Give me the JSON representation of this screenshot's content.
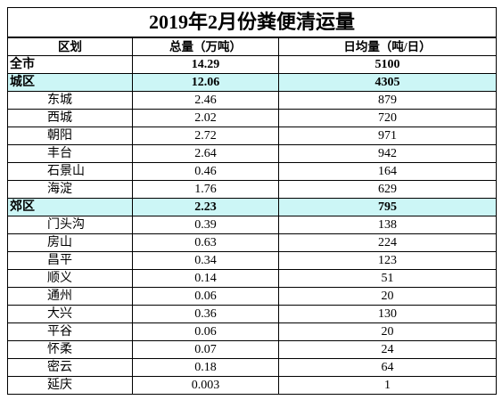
{
  "title": "2019年2月份粪便清运量",
  "headers": {
    "district": "区划",
    "total": "总量（万吨）",
    "daily": "日均量（吨/日）"
  },
  "citywide": {
    "name": "全市",
    "total": "14.29",
    "daily": "5100"
  },
  "urban": {
    "name": "城区",
    "total": "12.06",
    "daily": "4305",
    "rows": [
      {
        "name": "东城",
        "total": "2.46",
        "daily": "879"
      },
      {
        "name": "西城",
        "total": "2.02",
        "daily": "720"
      },
      {
        "name": "朝阳",
        "total": "2.72",
        "daily": "971"
      },
      {
        "name": "丰台",
        "total": "2.64",
        "daily": "942"
      },
      {
        "name": "石景山",
        "total": "0.46",
        "daily": "164"
      },
      {
        "name": "海淀",
        "total": "1.76",
        "daily": "629"
      }
    ]
  },
  "suburban": {
    "name": "郊区",
    "total": "2.23",
    "daily": "795",
    "rows": [
      {
        "name": "门头沟",
        "total": "0.39",
        "daily": "138"
      },
      {
        "name": "房山",
        "total": "0.63",
        "daily": "224"
      },
      {
        "name": "昌平",
        "total": "0.34",
        "daily": "123"
      },
      {
        "name": "顺义",
        "total": "0.14",
        "daily": "51"
      },
      {
        "name": "通州",
        "total": "0.06",
        "daily": "20"
      },
      {
        "name": "大兴",
        "total": "0.36",
        "daily": "130"
      },
      {
        "name": "平谷",
        "total": "0.06",
        "daily": "20"
      },
      {
        "name": "怀柔",
        "total": "0.07",
        "daily": "24"
      },
      {
        "name": "密云",
        "total": "0.18",
        "daily": "64"
      },
      {
        "name": "延庆",
        "total": "0.003",
        "daily": "1"
      }
    ]
  },
  "colors": {
    "group_highlight": "#ccf6f6",
    "border": "#000000"
  }
}
